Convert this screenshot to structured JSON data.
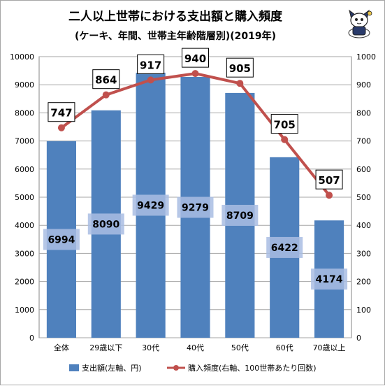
{
  "chart_data": {
    "type": "bar+line",
    "title": "二人以上世帯における支出額と購入頻度",
    "subtitle": "(ケーキ、年間、世帯主年齢階層別)(2019年)",
    "categories": [
      "全体",
      "29歳以下",
      "30代",
      "40代",
      "50代",
      "60代",
      "70歳以上"
    ],
    "series": [
      {
        "name": "支出額(左軸、円)",
        "type": "bar",
        "axis": "left",
        "color": "#4f81bd",
        "values": [
          6994,
          8090,
          9429,
          9279,
          8709,
          6422,
          4174
        ]
      },
      {
        "name": "購入頻度(右軸、100世帯あたり回数)",
        "type": "line",
        "axis": "right",
        "color": "#c0504d",
        "values": [
          747,
          864,
          917,
          940,
          905,
          705,
          507
        ]
      }
    ],
    "y_left": {
      "min": 0,
      "max": 10000,
      "step": 1000
    },
    "y_right": {
      "min": 0,
      "max": 1000,
      "step": 100
    },
    "grid": true,
    "legend_position": "bottom"
  }
}
